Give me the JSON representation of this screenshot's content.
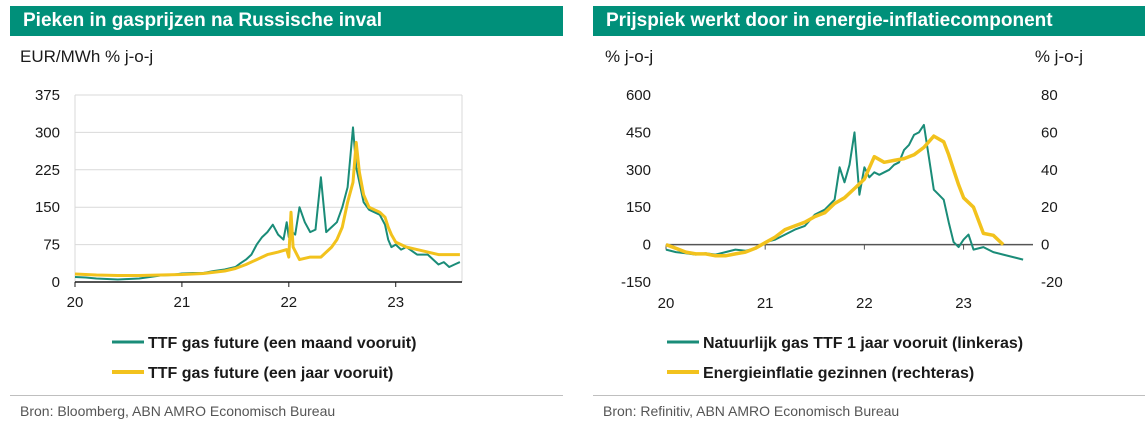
{
  "colors": {
    "title_bar": "#00907a",
    "title_text": "#ffffff",
    "teal": "#1a8c78",
    "yellow": "#f2c21d"
  },
  "panels": [
    {
      "title": "Pieken in gasprijzen na Russische inval",
      "source": "Bron: Bloomberg, ABN AMRO Economisch Bureau"
    },
    {
      "title": "Prijspiek werkt door in energie-inflatiecomponent",
      "source": "Bron: Refinitiv, ABN AMRO Economisch Bureau"
    }
  ],
  "chart_data": [
    {
      "type": "line",
      "title": "Pieken in gasprijzen na Russische inval",
      "ylabel": "EUR/MWh % j-o-j",
      "xlabel": "",
      "x_ticks": [
        "20",
        "21",
        "22",
        "23"
      ],
      "y_ticks": [
        0,
        75,
        150,
        225,
        300,
        375
      ],
      "xlim": [
        2020.0,
        2023.62
      ],
      "ylim": [
        0,
        375
      ],
      "grid": true,
      "legend": "bottom",
      "series": [
        {
          "name": "TTF gas future (een maand vooruit)",
          "color": "#1a8c78",
          "x": [
            2020.0,
            2020.1,
            2020.2,
            2020.3,
            2020.4,
            2020.5,
            2020.6,
            2020.7,
            2020.8,
            2020.9,
            2021.0,
            2021.1,
            2021.2,
            2021.3,
            2021.4,
            2021.5,
            2021.55,
            2021.6,
            2021.65,
            2021.7,
            2021.75,
            2021.8,
            2021.85,
            2021.9,
            2021.95,
            2021.98,
            2022.0,
            2022.03,
            2022.06,
            2022.1,
            2022.15,
            2022.2,
            2022.25,
            2022.3,
            2022.35,
            2022.4,
            2022.45,
            2022.5,
            2022.55,
            2022.6,
            2022.63,
            2022.66,
            2022.7,
            2022.75,
            2022.8,
            2022.85,
            2022.9,
            2022.93,
            2022.96,
            2023.0,
            2023.05,
            2023.1,
            2023.2,
            2023.3,
            2023.4,
            2023.45,
            2023.5,
            2023.55,
            2023.6
          ],
          "values": [
            10,
            9,
            7,
            6,
            5,
            6,
            7,
            10,
            13,
            14,
            17,
            18,
            18,
            22,
            25,
            30,
            38,
            45,
            55,
            75,
            90,
            100,
            115,
            95,
            85,
            120,
            90,
            100,
            95,
            150,
            120,
            100,
            105,
            210,
            100,
            110,
            120,
            150,
            190,
            310,
            230,
            200,
            160,
            145,
            140,
            135,
            115,
            85,
            70,
            75,
            65,
            70,
            55,
            55,
            35,
            40,
            30,
            35,
            40
          ]
        },
        {
          "name": "TTF gas future (een jaar vooruit)",
          "color": "#f2c21d",
          "x": [
            2020.0,
            2020.2,
            2020.4,
            2020.6,
            2020.8,
            2021.0,
            2021.2,
            2021.4,
            2021.5,
            2021.6,
            2021.7,
            2021.8,
            2021.9,
            2021.98,
            2022.0,
            2022.02,
            2022.04,
            2022.1,
            2022.2,
            2022.3,
            2022.4,
            2022.45,
            2022.5,
            2022.55,
            2022.6,
            2022.63,
            2022.66,
            2022.7,
            2022.75,
            2022.8,
            2022.85,
            2022.9,
            2022.93,
            2022.96,
            2023.0,
            2023.1,
            2023.2,
            2023.3,
            2023.4,
            2023.5,
            2023.6
          ],
          "values": [
            16,
            14,
            13,
            13,
            14,
            15,
            17,
            22,
            27,
            35,
            45,
            55,
            60,
            65,
            50,
            140,
            70,
            45,
            50,
            50,
            70,
            85,
            110,
            160,
            200,
            280,
            220,
            175,
            150,
            145,
            140,
            130,
            110,
            95,
            80,
            70,
            65,
            60,
            55,
            55,
            55
          ]
        }
      ]
    },
    {
      "type": "line",
      "title": "Prijspiek werkt door in energie-inflatiecomponent",
      "ylabel": "% j-o-j",
      "y2label": "% j-o-j",
      "xlabel": "",
      "x_ticks": [
        "20",
        "21",
        "22",
        "23"
      ],
      "y_ticks": [
        -150,
        0,
        150,
        300,
        450,
        600
      ],
      "y2_ticks": [
        -20,
        0,
        20,
        40,
        60,
        80
      ],
      "xlim": [
        2020.0,
        2023.7
      ],
      "ylim": [
        -150,
        600
      ],
      "y2lim": [
        -20,
        80
      ],
      "grid": false,
      "legend": "bottom",
      "series": [
        {
          "name": "Natuurlijk gas TTF 1 jaar vooruit (linkeras)",
          "axis": "left",
          "color": "#1a8c78",
          "x": [
            2020.0,
            2020.1,
            2020.2,
            2020.3,
            2020.4,
            2020.5,
            2020.6,
            2020.7,
            2020.8,
            2020.9,
            2021.0,
            2021.1,
            2021.2,
            2021.3,
            2021.4,
            2021.5,
            2021.6,
            2021.7,
            2021.75,
            2021.8,
            2021.85,
            2021.9,
            2021.95,
            2022.0,
            2022.05,
            2022.1,
            2022.15,
            2022.2,
            2022.25,
            2022.3,
            2022.35,
            2022.4,
            2022.45,
            2022.5,
            2022.55,
            2022.6,
            2022.65,
            2022.7,
            2022.75,
            2022.8,
            2022.85,
            2022.9,
            2022.95,
            2023.0,
            2023.05,
            2023.1,
            2023.2,
            2023.3,
            2023.4,
            2023.5,
            2023.6
          ],
          "values": [
            -20,
            -30,
            -35,
            -40,
            -35,
            -40,
            -30,
            -20,
            -25,
            -15,
            10,
            20,
            40,
            60,
            75,
            120,
            140,
            180,
            310,
            250,
            320,
            450,
            200,
            310,
            270,
            290,
            280,
            290,
            300,
            320,
            330,
            380,
            400,
            440,
            450,
            480,
            350,
            220,
            200,
            180,
            90,
            10,
            -10,
            20,
            40,
            -20,
            -10,
            -30,
            -40,
            -50,
            -60
          ]
        },
        {
          "name": "Energieinflatie gezinnen (rechteras)",
          "axis": "right",
          "color": "#f2c21d",
          "x": [
            2020.0,
            2020.1,
            2020.2,
            2020.3,
            2020.4,
            2020.5,
            2020.6,
            2020.7,
            2020.8,
            2020.9,
            2021.0,
            2021.1,
            2021.2,
            2021.3,
            2021.4,
            2021.5,
            2021.6,
            2021.7,
            2021.8,
            2021.9,
            2022.0,
            2022.1,
            2022.2,
            2022.3,
            2022.4,
            2022.5,
            2022.6,
            2022.7,
            2022.8,
            2022.85,
            2022.9,
            2022.95,
            2023.0,
            2023.1,
            2023.2,
            2023.3,
            2023.4
          ],
          "values": [
            0,
            -2,
            -4,
            -5,
            -5,
            -6,
            -6,
            -5,
            -4,
            -2,
            1,
            4,
            8,
            10,
            12,
            15,
            17,
            22,
            25,
            30,
            35,
            47,
            44,
            45,
            46,
            48,
            52,
            58,
            55,
            48,
            40,
            32,
            25,
            20,
            6,
            5,
            0
          ]
        }
      ]
    }
  ]
}
